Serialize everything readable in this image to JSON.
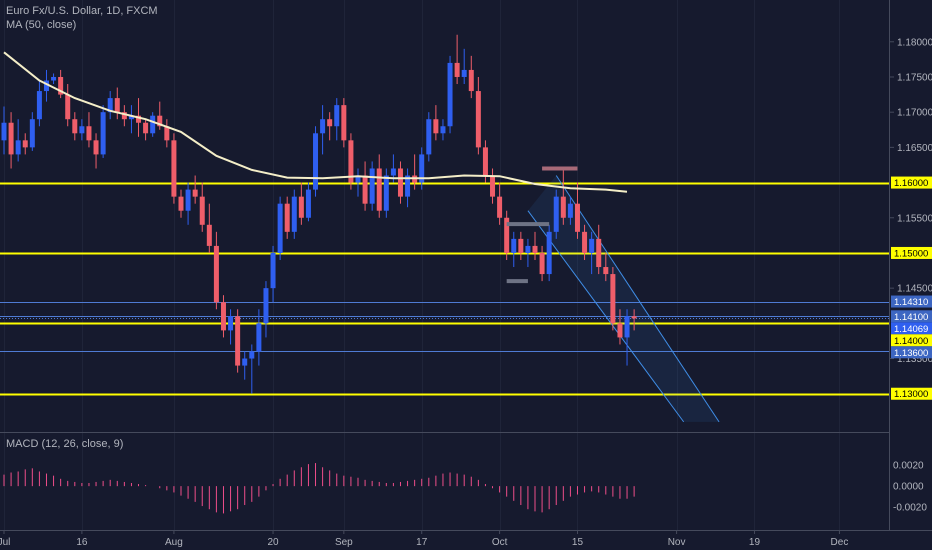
{
  "chart_data": {
    "type": "candlestick",
    "title": "Euro Fx/U.S. Dollar, 1D, FXCM",
    "ma_label": "MA (50, close)",
    "macd_label": "MACD (12, 26, close, 9)",
    "colors": {
      "background": "#161a2e",
      "up": "#2f5ff0",
      "down": "#ef5e6a",
      "ma": "#f4eec8",
      "level": "#ffff00",
      "blue_level": "#4f7bd4",
      "macd": "#ef4e8a",
      "channel": "#3f8de6"
    },
    "price_axis": {
      "ylim": [
        1.1257,
        1.1848
      ],
      "ticks": [
        "1.18000",
        "1.17500",
        "1.17000",
        "1.16500",
        "1.15500",
        "1.14500",
        "1.13500"
      ]
    },
    "level_labels": [
      {
        "label": "1.16000",
        "value": 1.16,
        "style": "yellow"
      },
      {
        "label": "1.15000",
        "value": 1.15,
        "style": "yellow"
      },
      {
        "label": "1.14310",
        "value": 1.1431,
        "style": "blue"
      },
      {
        "label": "1.14100",
        "value": 1.141,
        "style": "blue"
      },
      {
        "label": "1.14069",
        "value": 1.1407,
        "style": "current"
      },
      {
        "label": "1.14000",
        "value": 1.14,
        "style": "yellow"
      },
      {
        "label": "1.13600",
        "value": 1.136,
        "style": "blue"
      },
      {
        "label": "1.13000",
        "value": 1.13,
        "style": "yellow"
      }
    ],
    "macd_axis": {
      "ylim": [
        -0.0038,
        0.0044
      ],
      "ticks": [
        "0.0020",
        "0.0000",
        "-0.0020"
      ]
    },
    "x_ticks": [
      {
        "label": "Jul",
        "index": 0
      },
      {
        "label": "16",
        "index": 11
      },
      {
        "label": "Aug",
        "index": 24
      },
      {
        "label": "20",
        "index": 38
      },
      {
        "label": "Sep",
        "index": 48
      },
      {
        "label": "17",
        "index": 59
      },
      {
        "label": "Oct",
        "index": 70
      },
      {
        "label": "15",
        "index": 81
      },
      {
        "label": "Nov",
        "index": 95
      },
      {
        "label": "19",
        "index": 106
      },
      {
        "label": "Dec",
        "index": 118
      }
    ],
    "candles": [
      [
        1.166,
        1.1708,
        1.164,
        1.1685
      ],
      [
        1.1685,
        1.17,
        1.162,
        1.164
      ],
      [
        1.164,
        1.169,
        1.163,
        1.166
      ],
      [
        1.166,
        1.167,
        1.164,
        1.165
      ],
      [
        1.165,
        1.17,
        1.1645,
        1.169
      ],
      [
        1.169,
        1.1745,
        1.168,
        1.173
      ],
      [
        1.173,
        1.176,
        1.1715,
        1.1745
      ],
      [
        1.1745,
        1.1755,
        1.174,
        1.175
      ],
      [
        1.175,
        1.176,
        1.172,
        1.1725
      ],
      [
        1.1725,
        1.174,
        1.168,
        1.169
      ],
      [
        1.169,
        1.17,
        1.166,
        1.167
      ],
      [
        1.167,
        1.169,
        1.166,
        1.168
      ],
      [
        1.168,
        1.17,
        1.165,
        1.166
      ],
      [
        1.166,
        1.167,
        1.162,
        1.164
      ],
      [
        1.164,
        1.171,
        1.1635,
        1.17
      ],
      [
        1.17,
        1.173,
        1.169,
        1.172
      ],
      [
        1.172,
        1.1735,
        1.169,
        1.17
      ],
      [
        1.17,
        1.171,
        1.168,
        1.169
      ],
      [
        1.169,
        1.171,
        1.167,
        1.1695
      ],
      [
        1.1695,
        1.172,
        1.1665,
        1.1685
      ],
      [
        1.1685,
        1.169,
        1.166,
        1.167
      ],
      [
        1.167,
        1.17,
        1.1665,
        1.1695
      ],
      [
        1.1695,
        1.1715,
        1.1675,
        1.168
      ],
      [
        1.168,
        1.169,
        1.165,
        1.166
      ],
      [
        1.166,
        1.167,
        1.157,
        1.158
      ],
      [
        1.158,
        1.159,
        1.155,
        1.156
      ],
      [
        1.156,
        1.16,
        1.154,
        1.159
      ],
      [
        1.159,
        1.161,
        1.157,
        1.158
      ],
      [
        1.158,
        1.16,
        1.153,
        1.154
      ],
      [
        1.154,
        1.157,
        1.15,
        1.151
      ],
      [
        1.151,
        1.153,
        1.142,
        1.143
      ],
      [
        1.143,
        1.144,
        1.138,
        1.139
      ],
      [
        1.139,
        1.142,
        1.137,
        1.141
      ],
      [
        1.141,
        1.142,
        1.133,
        1.134
      ],
      [
        1.134,
        1.136,
        1.132,
        1.135
      ],
      [
        1.135,
        1.137,
        1.13,
        1.136
      ],
      [
        1.136,
        1.142,
        1.134,
        1.14
      ],
      [
        1.14,
        1.146,
        1.138,
        1.145
      ],
      [
        1.145,
        1.151,
        1.143,
        1.15
      ],
      [
        1.15,
        1.158,
        1.149,
        1.157
      ],
      [
        1.157,
        1.158,
        1.152,
        1.153
      ],
      [
        1.153,
        1.159,
        1.152,
        1.158
      ],
      [
        1.158,
        1.16,
        1.154,
        1.155
      ],
      [
        1.155,
        1.16,
        1.1545,
        1.159
      ],
      [
        1.159,
        1.168,
        1.158,
        1.167
      ],
      [
        1.167,
        1.171,
        1.164,
        1.169
      ],
      [
        1.169,
        1.17,
        1.166,
        1.168
      ],
      [
        1.168,
        1.172,
        1.166,
        1.171
      ],
      [
        1.171,
        1.172,
        1.165,
        1.166
      ],
      [
        1.166,
        1.167,
        1.159,
        1.16
      ],
      [
        1.16,
        1.162,
        1.158,
        1.161
      ],
      [
        1.161,
        1.163,
        1.156,
        1.157
      ],
      [
        1.157,
        1.163,
        1.156,
        1.162
      ],
      [
        1.162,
        1.164,
        1.155,
        1.156
      ],
      [
        1.156,
        1.162,
        1.155,
        1.161
      ],
      [
        1.161,
        1.164,
        1.16,
        1.162
      ],
      [
        1.162,
        1.163,
        1.157,
        1.158
      ],
      [
        1.158,
        1.162,
        1.1565,
        1.161
      ],
      [
        1.161,
        1.164,
        1.159,
        1.16
      ],
      [
        1.16,
        1.165,
        1.159,
        1.164
      ],
      [
        1.164,
        1.17,
        1.163,
        1.169
      ],
      [
        1.169,
        1.171,
        1.166,
        1.167
      ],
      [
        1.167,
        1.169,
        1.166,
        1.168
      ],
      [
        1.168,
        1.178,
        1.167,
        1.177
      ],
      [
        1.177,
        1.181,
        1.174,
        1.175
      ],
      [
        1.175,
        1.179,
        1.174,
        1.176
      ],
      [
        1.176,
        1.178,
        1.172,
        1.173
      ],
      [
        1.173,
        1.175,
        1.164,
        1.165
      ],
      [
        1.165,
        1.166,
        1.16,
        1.161
      ],
      [
        1.161,
        1.162,
        1.157,
        1.158
      ],
      [
        1.158,
        1.16,
        1.154,
        1.155
      ],
      [
        1.155,
        1.156,
        1.149,
        1.15
      ],
      [
        1.15,
        1.153,
        1.148,
        1.152
      ],
      [
        1.152,
        1.153,
        1.149,
        1.15
      ],
      [
        1.15,
        1.152,
        1.148,
        1.151
      ],
      [
        1.151,
        1.153,
        1.149,
        1.15
      ],
      [
        1.15,
        1.151,
        1.146,
        1.147
      ],
      [
        1.147,
        1.154,
        1.146,
        1.153
      ],
      [
        1.153,
        1.159,
        1.152,
        1.158
      ],
      [
        1.158,
        1.162,
        1.154,
        1.155
      ],
      [
        1.155,
        1.158,
        1.154,
        1.157
      ],
      [
        1.157,
        1.16,
        1.152,
        1.153
      ],
      [
        1.153,
        1.154,
        1.149,
        1.15
      ],
      [
        1.15,
        1.153,
        1.147,
        1.152
      ],
      [
        1.152,
        1.154,
        1.147,
        1.148
      ],
      [
        1.148,
        1.15,
        1.146,
        1.147
      ],
      [
        1.147,
        1.148,
        1.139,
        1.14
      ],
      [
        1.14,
        1.142,
        1.137,
        1.138
      ],
      [
        1.138,
        1.142,
        1.134,
        1.141
      ],
      [
        1.141,
        1.142,
        1.139,
        1.1407
      ]
    ],
    "ma50": [
      [
        0,
        1.1785
      ],
      [
        5,
        1.1745
      ],
      [
        10,
        1.172
      ],
      [
        15,
        1.1702
      ],
      [
        20,
        1.169
      ],
      [
        25,
        1.1672
      ],
      [
        30,
        1.1638
      ],
      [
        35,
        1.1618
      ],
      [
        40,
        1.1607
      ],
      [
        45,
        1.1606
      ],
      [
        50,
        1.1609
      ],
      [
        55,
        1.1606
      ],
      [
        60,
        1.1606
      ],
      [
        65,
        1.161
      ],
      [
        70,
        1.1609
      ],
      [
        75,
        1.1598
      ],
      [
        80,
        1.1592
      ],
      [
        85,
        1.159
      ],
      [
        88,
        1.1587
      ]
    ],
    "channel": {
      "upper": [
        [
          78,
          1.161
        ],
        [
          101,
          1.126
        ]
      ],
      "lower": [
        [
          74,
          1.156
        ],
        [
          96,
          1.126
        ]
      ]
    },
    "brackets": [
      {
        "x0": 71,
        "x1": 77,
        "y": 1.1541,
        "color": "#6e7385"
      },
      {
        "x0": 71,
        "x1": 74,
        "y": 1.146,
        "color": "#6e7385"
      },
      {
        "x0": 76,
        "x1": 81,
        "y": 1.162,
        "color": "#a86a78"
      }
    ],
    "macd_hist": [
      0.0011,
      0.0013,
      0.0014,
      0.0016,
      0.0017,
      0.0014,
      0.0012,
      0.001,
      0.0007,
      0.0005,
      0.0004,
      0.0003,
      0.0003,
      0.0004,
      0.0005,
      0.0006,
      0.0005,
      0.0004,
      0.0003,
      0.0002,
      0.0001,
      0.0,
      -0.0002,
      -0.0004,
      -0.0006,
      -0.0009,
      -0.0012,
      -0.0015,
      -0.0019,
      -0.0022,
      -0.0025,
      -0.0026,
      -0.0024,
      -0.0022,
      -0.0018,
      -0.0015,
      -0.001,
      -0.0004,
      0.0002,
      0.0007,
      0.0011,
      0.0015,
      0.0018,
      0.0021,
      0.0022,
      0.0018,
      0.0015,
      0.0012,
      0.001,
      0.0009,
      0.0008,
      0.0006,
      0.0005,
      0.0004,
      0.0003,
      0.0003,
      0.0004,
      0.0005,
      0.0006,
      0.0007,
      0.0008,
      0.001,
      0.0012,
      0.0013,
      0.0012,
      0.0011,
      0.0009,
      0.0006,
      0.0002,
      -0.0002,
      -0.0006,
      -0.001,
      -0.0014,
      -0.0018,
      -0.0022,
      -0.0024,
      -0.0025,
      -0.0022,
      -0.0018,
      -0.0014,
      -0.001,
      -0.0008,
      -0.0006,
      -0.0005,
      -0.0006,
      -0.0008,
      -0.001,
      -0.0012,
      -0.0012,
      -0.001
    ]
  }
}
